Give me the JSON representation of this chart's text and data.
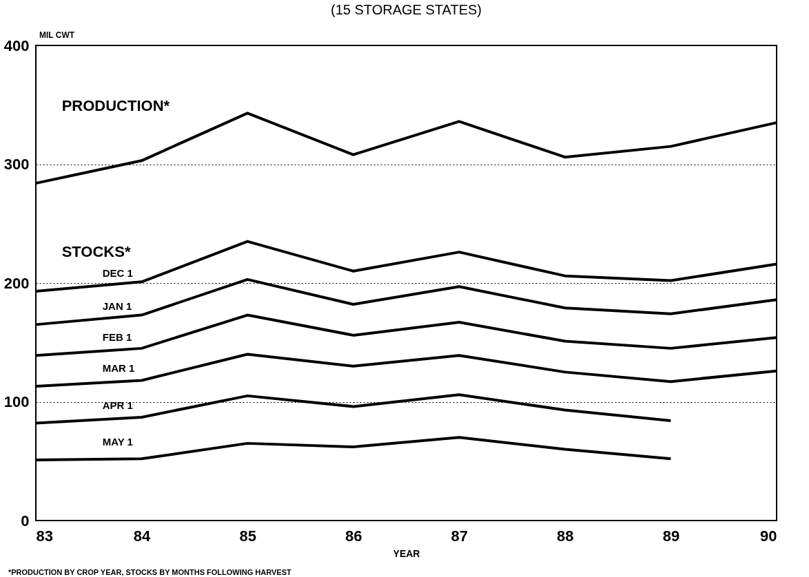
{
  "chart_data": {
    "type": "line",
    "title": "(15 STORAGE STATES)",
    "xlabel": "YEAR",
    "ylabel": "MIL CWT",
    "x": [
      83,
      84,
      85,
      86,
      87,
      88,
      89,
      90
    ],
    "xlim": [
      83,
      90
    ],
    "xticks": [
      83,
      84,
      85,
      86,
      87,
      88,
      89,
      90
    ],
    "ylim": [
      0,
      400
    ],
    "yticks": [
      0,
      100,
      200,
      300,
      400
    ],
    "grid": "y",
    "legend": false,
    "marker": "none",
    "line_style": "solid",
    "series": [
      {
        "name": "PRODUCTION*",
        "color": "#000000",
        "values": [
          284,
          303,
          343,
          308,
          336,
          306,
          315,
          335
        ]
      },
      {
        "name": "DEC 1",
        "color": "#000000",
        "values": [
          193,
          201,
          235,
          210,
          226,
          206,
          202,
          216
        ]
      },
      {
        "name": "JAN 1",
        "color": "#000000",
        "values": [
          165,
          173,
          203,
          182,
          197,
          179,
          174,
          186
        ]
      },
      {
        "name": "FEB 1",
        "color": "#000000",
        "values": [
          139,
          145,
          173,
          156,
          167,
          151,
          145,
          154
        ]
      },
      {
        "name": "MAR 1",
        "color": "#000000",
        "values": [
          113,
          118,
          140,
          130,
          139,
          125,
          117,
          126
        ]
      },
      {
        "name": "APR 1",
        "color": "#000000",
        "values": [
          82,
          87,
          105,
          96,
          106,
          93,
          84,
          null
        ]
      },
      {
        "name": "MAY 1",
        "color": "#000000",
        "values": [
          51,
          52,
          65,
          62,
          70,
          60,
          52,
          null
        ]
      }
    ],
    "annotations": [
      "STOCKS*",
      "*PRODUCTION BY CROP YEAR, STOCKS BY MONTHS FOLLOWING HARVEST"
    ]
  }
}
